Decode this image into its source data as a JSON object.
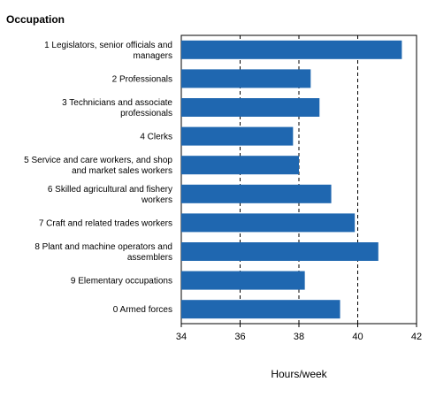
{
  "chart_data": {
    "type": "bar",
    "orientation": "horizontal",
    "header": "Occupation",
    "xlabel": "Hours/week",
    "categories": [
      [
        "1 Legislators, senior officials and",
        "managers"
      ],
      [
        "2 Professionals"
      ],
      [
        "3 Technicians and associate",
        "professionals"
      ],
      [
        "4 Clerks"
      ],
      [
        "5 Service and care workers, and shop",
        "and market sales workers"
      ],
      [
        "6 Skilled agricultural and fishery",
        "workers"
      ],
      [
        "7 Craft and related trades workers"
      ],
      [
        "8 Plant and machine operators and",
        "assemblers"
      ],
      [
        "9 Elementary occupations"
      ],
      [
        "0 Armed forces"
      ]
    ],
    "values": [
      41.5,
      38.4,
      38.7,
      37.8,
      38.0,
      39.1,
      39.9,
      40.7,
      38.2,
      39.4
    ],
    "xlim": [
      34,
      42
    ],
    "xticks": [
      "34",
      "36",
      "38",
      "40",
      "42"
    ],
    "gridlines": "vertical dashed",
    "bar_color": "#1f67b0"
  }
}
